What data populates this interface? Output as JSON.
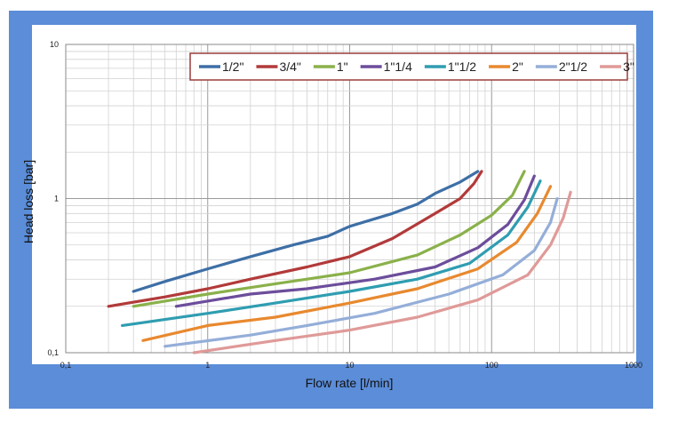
{
  "chart_data": {
    "type": "line",
    "xscale": "log",
    "yscale": "log",
    "xlim": [
      0.1,
      1000
    ],
    "ylim": [
      0.1,
      10
    ],
    "xlabel": "Flow rate [l/min]",
    "ylabel": "Head loss [bar]",
    "x_tick_labels": [
      "0,1",
      "1",
      "10",
      "100",
      "1000"
    ],
    "y_tick_labels": [
      "0,1",
      "1",
      "10"
    ],
    "grid": true,
    "legend_position": "top-right",
    "series": [
      {
        "name": "1/2\"",
        "color": "#3e6fa6",
        "x": [
          0.3,
          0.5,
          1,
          2,
          4,
          7,
          10,
          20,
          30,
          40,
          60,
          80
        ],
        "y": [
          0.25,
          0.29,
          0.35,
          0.42,
          0.5,
          0.57,
          0.66,
          0.8,
          0.92,
          1.08,
          1.28,
          1.5
        ]
      },
      {
        "name": "3/4\"",
        "color": "#b23a3a",
        "x": [
          0.2,
          0.5,
          1,
          2,
          5,
          10,
          20,
          40,
          60,
          75,
          85
        ],
        "y": [
          0.2,
          0.23,
          0.26,
          0.3,
          0.36,
          0.42,
          0.55,
          0.8,
          1.0,
          1.25,
          1.5
        ]
      },
      {
        "name": "1\"",
        "color": "#8ab14a",
        "x": [
          0.3,
          1,
          3,
          10,
          30,
          60,
          100,
          140,
          170
        ],
        "y": [
          0.2,
          0.24,
          0.28,
          0.33,
          0.43,
          0.58,
          0.78,
          1.05,
          1.5
        ]
      },
      {
        "name": "1\"1/4",
        "color": "#6c4d9b",
        "x": [
          0.6,
          2,
          5,
          15,
          40,
          80,
          130,
          170,
          200
        ],
        "y": [
          0.2,
          0.24,
          0.26,
          0.3,
          0.36,
          0.48,
          0.68,
          0.98,
          1.4
        ]
      },
      {
        "name": "1\"1/2",
        "color": "#2f9db1",
        "x": [
          0.25,
          1,
          3,
          10,
          30,
          70,
          130,
          180,
          220
        ],
        "y": [
          0.15,
          0.18,
          0.21,
          0.25,
          0.3,
          0.38,
          0.58,
          0.88,
          1.3
        ]
      },
      {
        "name": "2\"",
        "color": "#e8892f",
        "x": [
          0.35,
          1,
          3,
          10,
          30,
          80,
          150,
          210,
          260
        ],
        "y": [
          0.12,
          0.15,
          0.17,
          0.21,
          0.26,
          0.35,
          0.52,
          0.8,
          1.2
        ]
      },
      {
        "name": "2\"1/2",
        "color": "#94aed8",
        "x": [
          0.5,
          2,
          5,
          15,
          50,
          120,
          200,
          260,
          290
        ],
        "y": [
          0.11,
          0.13,
          0.15,
          0.18,
          0.24,
          0.32,
          0.46,
          0.7,
          1.0
        ]
      },
      {
        "name": "3\"",
        "color": "#df9a98",
        "x": [
          0.8,
          3,
          10,
          30,
          80,
          180,
          260,
          320,
          360
        ],
        "y": [
          0.1,
          0.12,
          0.14,
          0.17,
          0.22,
          0.32,
          0.5,
          0.75,
          1.1
        ]
      }
    ]
  }
}
